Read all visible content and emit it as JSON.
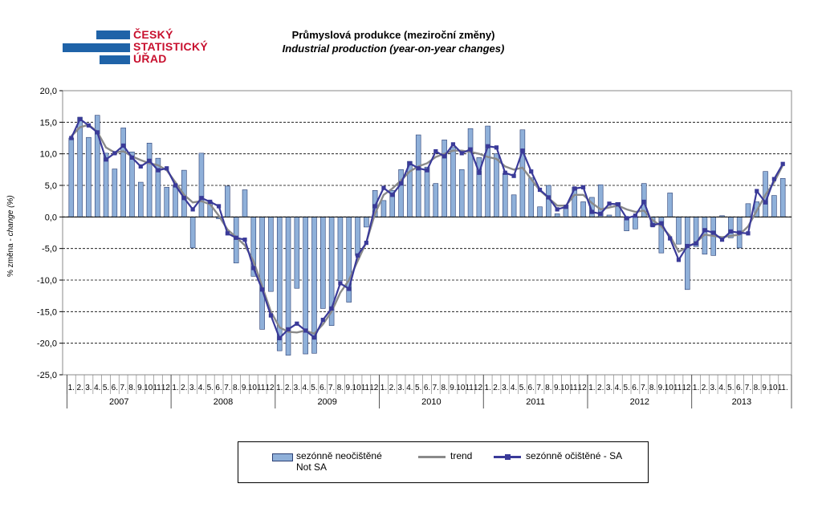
{
  "logo": {
    "line1": "ČESKÝ",
    "line2": "STATISTICKÝ",
    "line3": "ÚŘAD"
  },
  "header": {
    "title_cz": "Průmyslová produkce (meziroční změny)",
    "title_en": "Industrial production (year-on-year changes)"
  },
  "axis": {
    "ylabel_cz": "% změna - ",
    "ylabel_en": "change (%)"
  },
  "legend": {
    "bars_cz": "sezónně neočištěné",
    "bars_en": "Not SA",
    "trend": "trend",
    "sa": "sezónně očištěné - SA"
  },
  "colors": {
    "bar_fill": "#8fb0d9",
    "bar_edge": "#2b3f74",
    "trend": "#8a8a8a",
    "sa": "#3a3a99",
    "logo_blue": "#1f63a8",
    "logo_red": "#c8102e"
  },
  "chart_data": {
    "type": "bar",
    "ylim": [
      -25,
      20
    ],
    "yticks": [
      "20,0",
      "15,0",
      "10,0",
      "5,0",
      "0,0",
      "-5,0",
      "-10,0",
      "-15,0",
      "-20,0",
      "-25,0"
    ],
    "grid": true,
    "legend_position": "bottom",
    "years": [
      "2007",
      "2008",
      "2009",
      "2010",
      "2011",
      "2012",
      "2013"
    ],
    "month_labels": [
      "1.",
      "2.",
      "3.",
      "4.",
      "5.",
      "6.",
      "7.",
      "8.",
      "9.",
      "10.",
      "11.",
      "12."
    ],
    "months_last_year": 11,
    "series": [
      {
        "name": "sezónně neočištěné Not SA",
        "type": "bar",
        "values": [
          12.5,
          15.8,
          12.6,
          16.1,
          10.1,
          7.6,
          14.1,
          10.3,
          5.5,
          11.7,
          9.3,
          4.7,
          5.0,
          7.4,
          -4.9,
          10.1,
          2.4,
          -0.3,
          4.9,
          -7.3,
          4.3,
          -9.4,
          -17.8,
          -11.8,
          -21.2,
          -21.9,
          -11.3,
          -21.7,
          -21.6,
          -14.5,
          -17.2,
          -10.1,
          -13.5,
          -6.1,
          -1.6,
          4.2,
          2.6,
          4.2,
          7.5,
          8.8,
          13.0,
          7.9,
          5.3,
          12.2,
          11.0,
          7.5,
          14.0,
          9.4,
          14.4,
          10.0,
          6.9,
          3.5,
          13.8,
          6.2,
          1.6,
          5.0,
          0.5,
          1.9,
          4.7,
          2.4,
          3.1,
          5.1,
          0.3,
          2.3,
          -2.2,
          -1.9,
          5.3,
          -1.5,
          -5.7,
          3.8,
          -4.3,
          -11.5,
          -4.7,
          -5.9,
          -6.1,
          0.2,
          -3.3,
          -4.9,
          2.1,
          2.4,
          7.2,
          3.4,
          6.1
        ]
      },
      {
        "name": "trend",
        "type": "line",
        "values": [
          12.8,
          14.2,
          14.6,
          13.5,
          11.0,
          10.2,
          10.4,
          9.6,
          9.0,
          8.5,
          8.2,
          7.4,
          5.5,
          3.5,
          2.3,
          2.5,
          2.0,
          0.2,
          -2.0,
          -3.2,
          -4.5,
          -7.0,
          -11.0,
          -15.0,
          -17.5,
          -18.2,
          -18.3,
          -18.0,
          -18.5,
          -17.0,
          -15.0,
          -12.0,
          -10.0,
          -7.0,
          -4.0,
          0.5,
          3.5,
          4.5,
          5.8,
          7.2,
          8.0,
          8.5,
          9.5,
          10.0,
          10.5,
          10.5,
          10.3,
          10.0,
          9.5,
          9.2,
          8.0,
          7.5,
          7.8,
          6.0,
          4.2,
          3.0,
          1.8,
          1.8,
          3.5,
          3.5,
          2.2,
          1.2,
          1.5,
          1.8,
          1.2,
          0.8,
          1.0,
          -0.5,
          -1.5,
          -3.0,
          -5.5,
          -4.8,
          -4.0,
          -2.8,
          -3.0,
          -3.2,
          -3.0,
          -2.8,
          -1.5,
          1.0,
          3.5,
          5.5,
          8.2
        ]
      },
      {
        "name": "sezónně očištěné - SA",
        "type": "line",
        "values": [
          12.5,
          15.5,
          14.5,
          13.4,
          9.1,
          10.1,
          11.3,
          9.4,
          8.0,
          8.9,
          7.4,
          7.7,
          5.0,
          3.0,
          1.2,
          3.0,
          2.4,
          1.7,
          -2.6,
          -3.3,
          -3.6,
          -8.1,
          -11.5,
          -15.6,
          -19.2,
          -17.8,
          -16.9,
          -18.0,
          -19.1,
          -16.3,
          -14.5,
          -10.5,
          -11.4,
          -6.1,
          -4.1,
          1.7,
          4.6,
          3.5,
          5.3,
          8.5,
          7.7,
          7.4,
          10.4,
          9.6,
          11.5,
          10.1,
          10.7,
          7.0,
          11.2,
          11.0,
          7.0,
          6.5,
          10.5,
          7.2,
          4.3,
          3.1,
          1.2,
          1.6,
          4.5,
          4.7,
          0.8,
          0.5,
          2.1,
          2.0,
          -0.2,
          0.2,
          2.4,
          -1.3,
          -1.0,
          -3.4,
          -6.8,
          -4.6,
          -4.2,
          -2.1,
          -2.5,
          -3.6,
          -2.3,
          -2.5,
          -2.6,
          4.1,
          2.3,
          6.0,
          8.4
        ]
      }
    ]
  }
}
